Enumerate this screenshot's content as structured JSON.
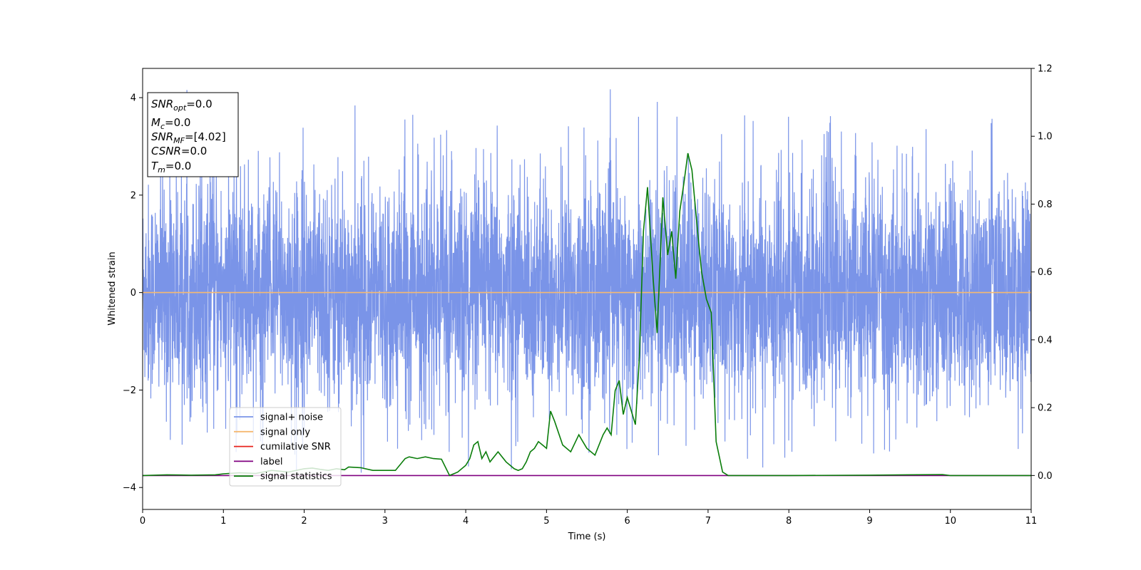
{
  "chart_data": {
    "type": "line",
    "title": "",
    "xlabel": "Time (s)",
    "ylabel": "Whitened strain",
    "y2label": "",
    "xlim": [
      0,
      11
    ],
    "ylim": [
      -4.45,
      4.6
    ],
    "y2lim": [
      -0.1,
      1.2
    ],
    "xticks": [
      0,
      1,
      2,
      3,
      4,
      5,
      6,
      7,
      8,
      9,
      10,
      11
    ],
    "yticks": [
      -4,
      -2,
      0,
      2,
      4
    ],
    "y2ticks": [
      "0.0",
      "0.2",
      "0.4",
      "0.6",
      "0.8",
      "1.0",
      "1.2"
    ],
    "grid": false,
    "legend_position": "lower-left",
    "info_box": {
      "lines": [
        {
          "name": "SNR",
          "sub": "opt",
          "value": "=0.0"
        },
        {
          "name": "M",
          "sub": "c",
          "value": "=0.0"
        },
        {
          "name": "SNR",
          "sub": "MF",
          "value": "=[4.02]"
        },
        {
          "name": "CSNR",
          "sub": "",
          "value": "=0.0"
        },
        {
          "name": "T",
          "sub": "m",
          "value": "=0.0"
        }
      ]
    },
    "series": [
      {
        "name": "signal+ noise",
        "axis": "left",
        "color": "#7a94e8",
        "kind": "noise",
        "amplitude_typical": 1.4,
        "amplitude_max": 4.17
      },
      {
        "name": "signal only",
        "axis": "left",
        "color": "#f5b971",
        "x": [
          0,
          11
        ],
        "y": [
          0,
          0
        ]
      },
      {
        "name": "cumilative SNR",
        "axis": "right",
        "color": "#e8231c",
        "x": [],
        "y": []
      },
      {
        "name": "label",
        "axis": "right",
        "color": "#800080",
        "x": [
          0,
          11
        ],
        "y": [
          0,
          0
        ]
      },
      {
        "name": "signal statistics",
        "axis": "right",
        "color": "#0a7d0a",
        "x": [
          0,
          0.3,
          0.6,
          0.9,
          1.0,
          1.2,
          1.4,
          1.6,
          1.8,
          2.0,
          2.1,
          2.2,
          2.3,
          2.4,
          2.5,
          2.55,
          2.7,
          2.85,
          3.0,
          3.13,
          3.25,
          3.3,
          3.4,
          3.5,
          3.6,
          3.7,
          3.8,
          3.9,
          4.0,
          4.05,
          4.1,
          4.15,
          4.2,
          4.25,
          4.3,
          4.4,
          4.5,
          4.6,
          4.65,
          4.7,
          4.75,
          4.8,
          4.85,
          4.9,
          4.95,
          5.0,
          5.05,
          5.1,
          5.2,
          5.3,
          5.4,
          5.45,
          5.5,
          5.6,
          5.7,
          5.75,
          5.8,
          5.85,
          5.9,
          5.95,
          6.0,
          6.05,
          6.1,
          6.15,
          6.2,
          6.25,
          6.32,
          6.37,
          6.44,
          6.5,
          6.55,
          6.6,
          6.65,
          6.7,
          6.75,
          6.8,
          6.87,
          6.92,
          6.98,
          7.04,
          7.1,
          7.18,
          7.25,
          7.3,
          7.4,
          8.0,
          9.0,
          9.9,
          10.0,
          11.0
        ],
        "y": [
          0.0,
          0.002,
          0.001,
          0.002,
          0.005,
          0.008,
          0.006,
          0.015,
          0.01,
          0.02,
          0.022,
          0.018,
          0.015,
          0.02,
          0.017,
          0.025,
          0.023,
          0.015,
          0.015,
          0.015,
          0.05,
          0.055,
          0.05,
          0.055,
          0.05,
          0.048,
          0.0,
          0.01,
          0.03,
          0.05,
          0.09,
          0.1,
          0.05,
          0.07,
          0.04,
          0.07,
          0.04,
          0.02,
          0.015,
          0.02,
          0.04,
          0.07,
          0.08,
          0.1,
          0.09,
          0.08,
          0.19,
          0.16,
          0.09,
          0.07,
          0.12,
          0.1,
          0.08,
          0.06,
          0.12,
          0.14,
          0.12,
          0.25,
          0.28,
          0.18,
          0.23,
          0.19,
          0.15,
          0.35,
          0.72,
          0.85,
          0.58,
          0.42,
          0.82,
          0.65,
          0.72,
          0.58,
          0.78,
          0.86,
          0.95,
          0.9,
          0.72,
          0.6,
          0.52,
          0.48,
          0.1,
          0.01,
          0.0,
          0.0,
          0.0,
          0.0,
          0.001,
          0.003,
          0.0,
          0.0
        ]
      }
    ]
  }
}
